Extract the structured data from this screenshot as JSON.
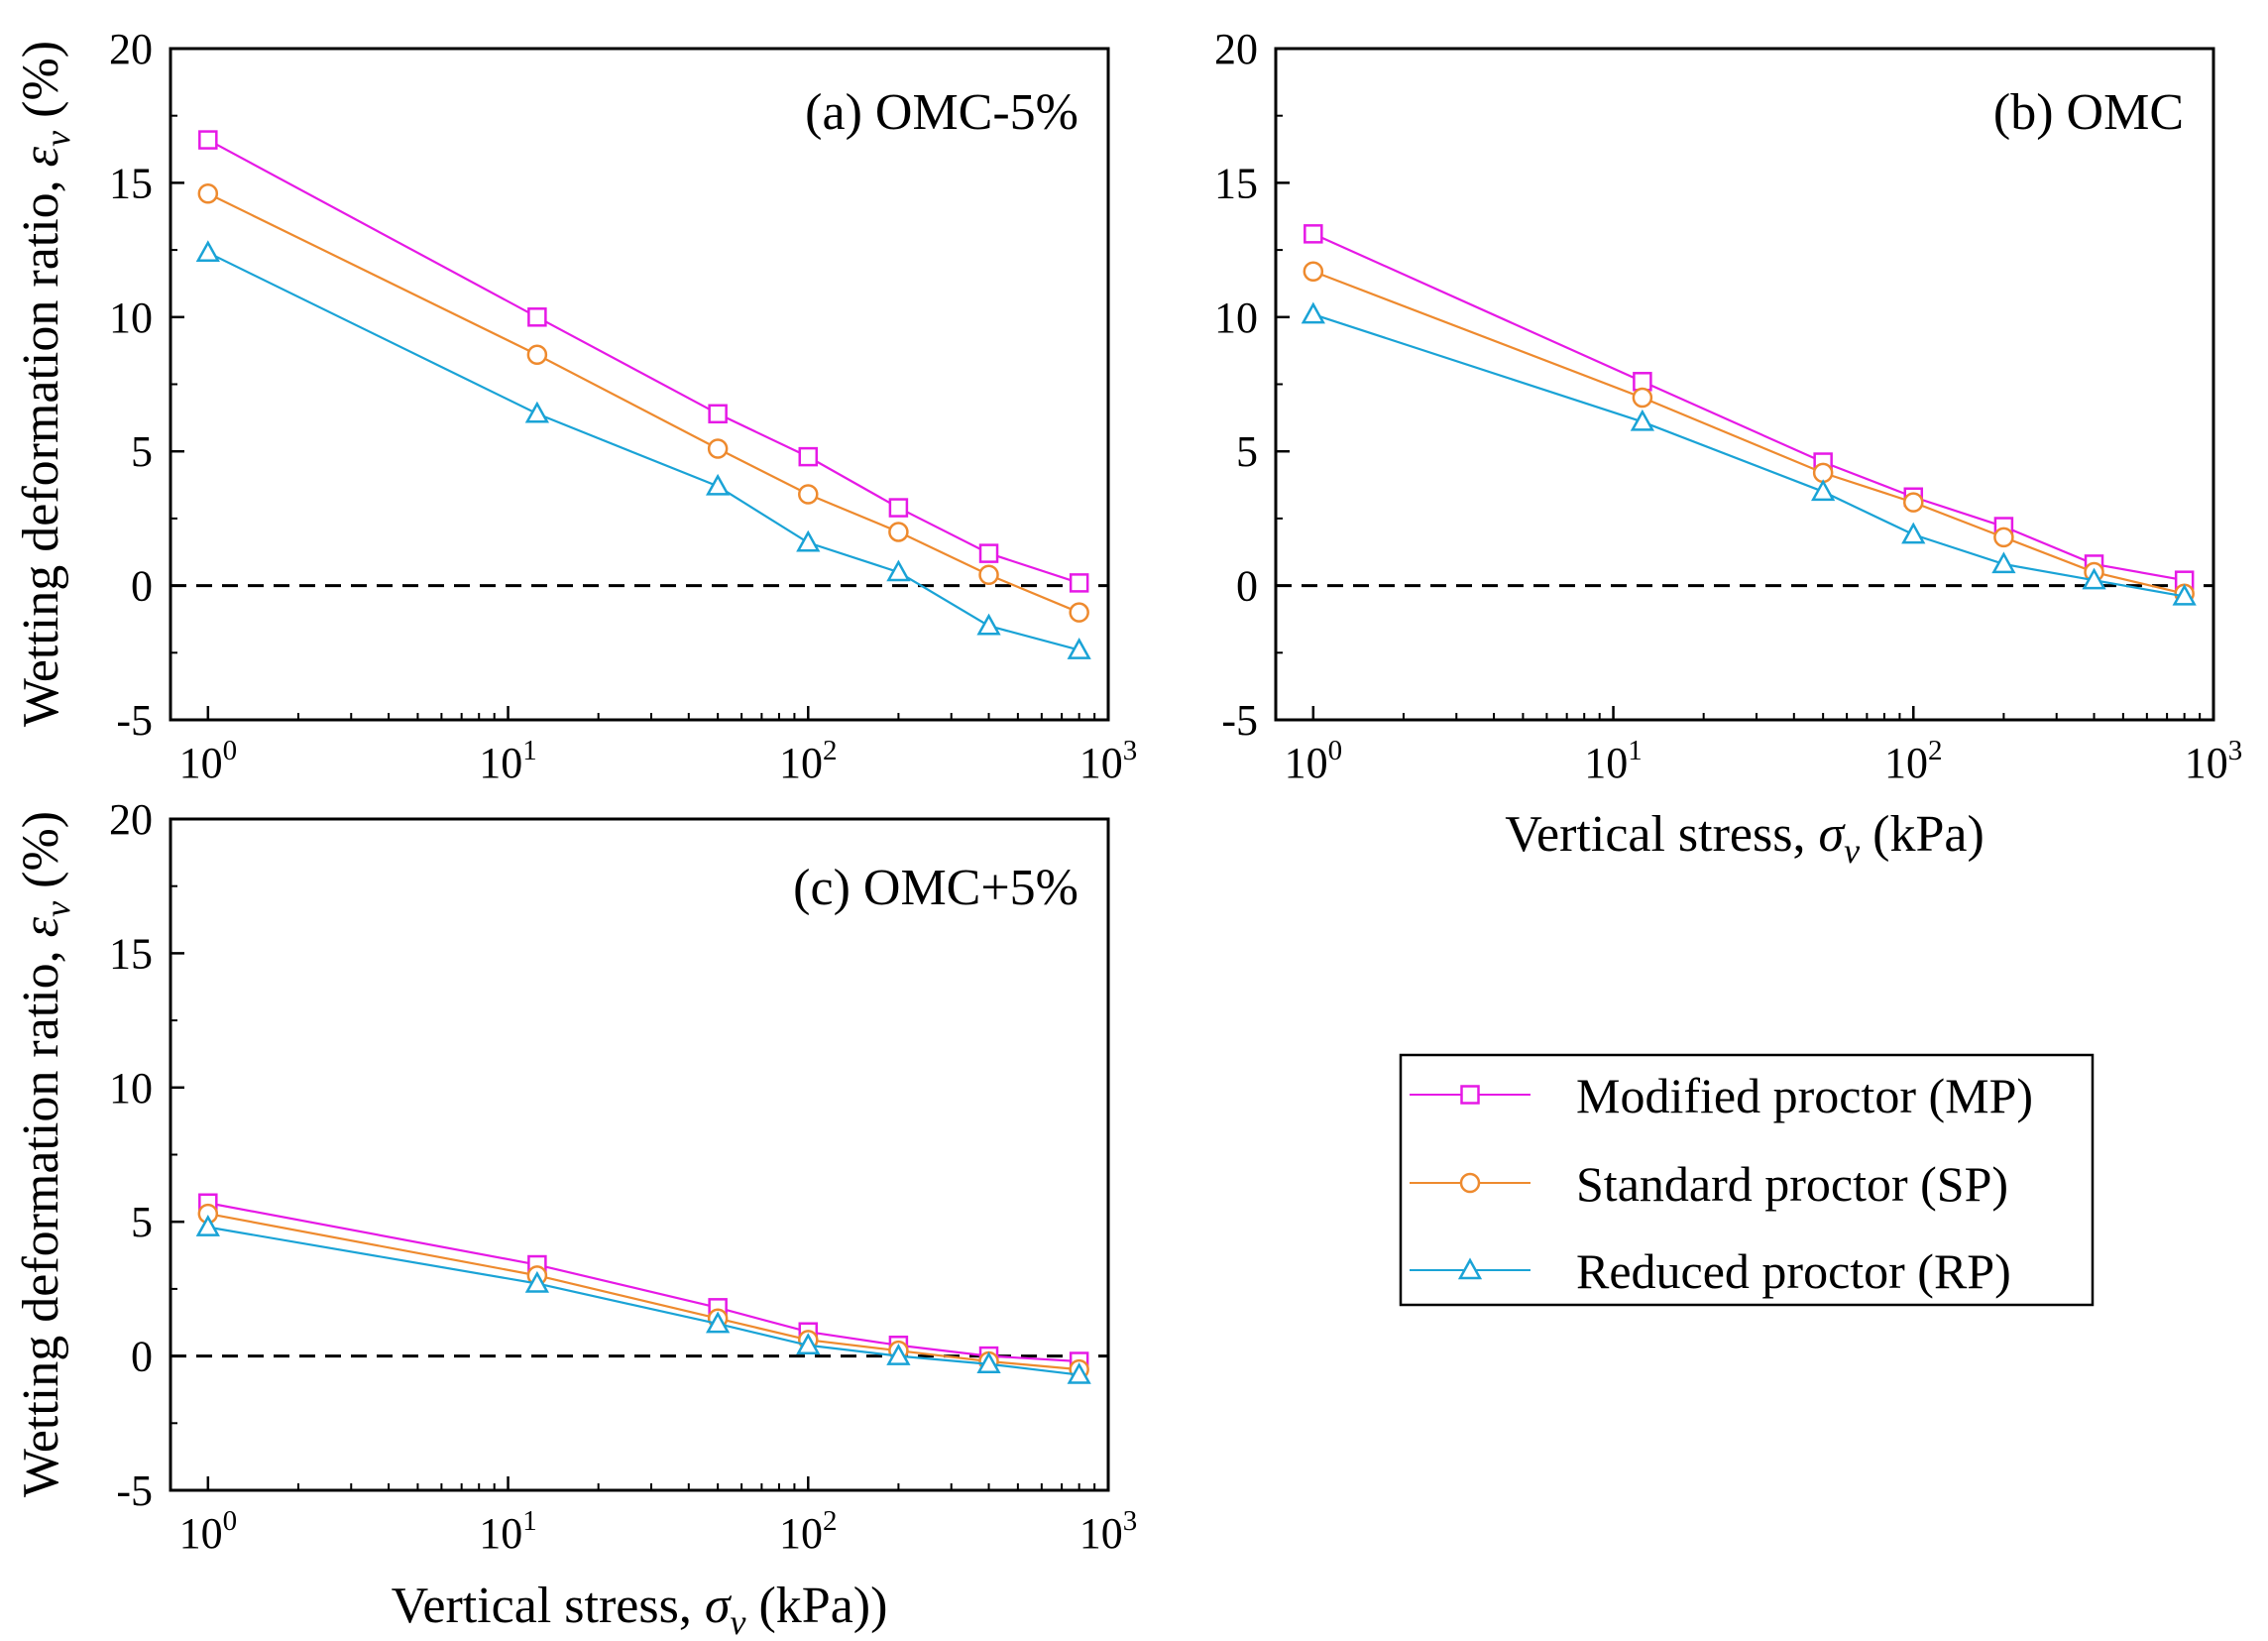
{
  "chart_data": [
    {
      "type": "line",
      "panel_title": "(a) OMC-5%",
      "xlabel": "Vertical stress, σv (kPa)",
      "ylabel": "Wetting deformation ratio, εv (%)",
      "xscale": "log",
      "xlim": [
        0.75,
        1000
      ],
      "ylim": [
        -5,
        20
      ],
      "x": [
        1,
        12.5,
        50,
        100,
        200,
        400,
        800
      ],
      "series": [
        {
          "name": "Modified proctor (MP)",
          "values": [
            16.6,
            10.0,
            6.4,
            4.8,
            2.9,
            1.2,
            0.1
          ]
        },
        {
          "name": "Standard proctor (SP)",
          "values": [
            14.6,
            8.6,
            5.1,
            3.4,
            2.0,
            0.4,
            -1.0
          ]
        },
        {
          "name": "Reduced proctor (RP)",
          "values": [
            12.4,
            6.4,
            3.7,
            1.6,
            0.5,
            -1.5,
            -2.4
          ]
        }
      ]
    },
    {
      "type": "line",
      "panel_title": "(b) OMC",
      "xlabel": "Vertical stress, σv (kPa)",
      "ylabel": "",
      "xscale": "log",
      "xlim": [
        0.75,
        1000
      ],
      "ylim": [
        -5,
        20
      ],
      "x": [
        1,
        12.5,
        50,
        100,
        200,
        400,
        800
      ],
      "series": [
        {
          "name": "Modified proctor (MP)",
          "values": [
            13.1,
            7.6,
            4.6,
            3.3,
            2.2,
            0.8,
            0.2
          ]
        },
        {
          "name": "Standard proctor (SP)",
          "values": [
            11.7,
            7.0,
            4.2,
            3.1,
            1.8,
            0.5,
            -0.3
          ]
        },
        {
          "name": "Reduced proctor (RP)",
          "values": [
            10.1,
            6.1,
            3.5,
            1.9,
            0.8,
            0.2,
            -0.4
          ]
        }
      ]
    },
    {
      "type": "line",
      "panel_title": "(c) OMC+5%",
      "xlabel": "Vertical stress, σv (kPa))",
      "ylabel": "Wetting deformation ratio, εv (%)",
      "xscale": "log",
      "xlim": [
        0.75,
        1000
      ],
      "ylim": [
        -5,
        20
      ],
      "x": [
        1,
        12.5,
        50,
        100,
        200,
        400,
        800
      ],
      "series": [
        {
          "name": "Modified proctor (MP)",
          "values": [
            5.7,
            3.4,
            1.8,
            0.9,
            0.4,
            0.0,
            -0.2
          ]
        },
        {
          "name": "Standard proctor (SP)",
          "values": [
            5.3,
            3.0,
            1.4,
            0.6,
            0.2,
            -0.2,
            -0.5
          ]
        },
        {
          "name": "Reduced proctor (RP)",
          "values": [
            4.8,
            2.7,
            1.2,
            0.4,
            0.0,
            -0.3,
            -0.7
          ]
        }
      ]
    }
  ],
  "axis_text": {
    "xlabel_main": "Vertical stress, ",
    "xlabel_symbol": "σ",
    "xlabel_subscript": "v",
    "xlabel_unit": " (kPa)",
    "xlabel_unit_c": " (kPa))",
    "ylabel_main": "Wetting deformation ratio, ",
    "ylabel_symbol": "ε",
    "ylabel_subscript": "v",
    "ylabel_unit": "  (%)",
    "x_ticks": [
      {
        "base": "10",
        "exp": "0"
      },
      {
        "base": "10",
        "exp": "1"
      },
      {
        "base": "10",
        "exp": "2"
      },
      {
        "base": "10",
        "exp": "3"
      }
    ],
    "y_ticks": [
      "-5",
      "0",
      "5",
      "10",
      "15",
      "20"
    ]
  },
  "legend": {
    "placement": "right-middle",
    "items": [
      {
        "label": "Modified proctor (MP)",
        "marker": "square-icon"
      },
      {
        "label": "Standard proctor (SP)",
        "marker": "circle-icon"
      },
      {
        "label": "Reduced proctor (RP)",
        "marker": "triangle-icon"
      }
    ]
  },
  "colors": {
    "MP": "#e619e6",
    "SP": "#ee8a2e",
    "RP": "#1aa3d6",
    "axis": "#000000",
    "zero_line": "#000000"
  }
}
